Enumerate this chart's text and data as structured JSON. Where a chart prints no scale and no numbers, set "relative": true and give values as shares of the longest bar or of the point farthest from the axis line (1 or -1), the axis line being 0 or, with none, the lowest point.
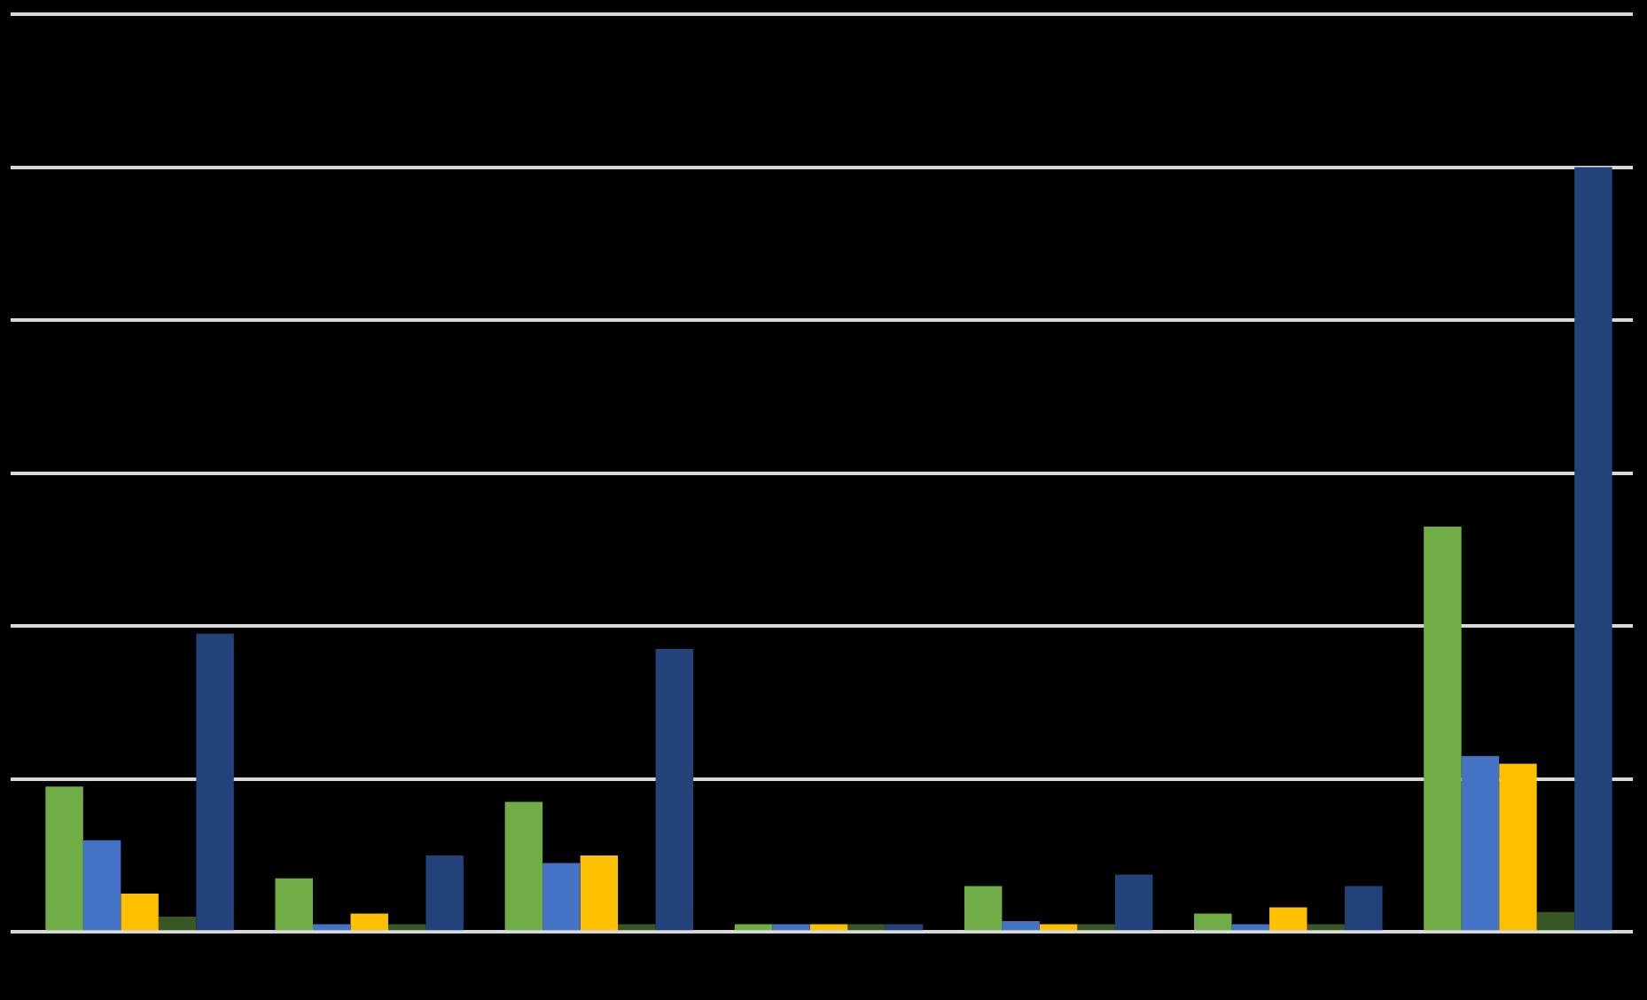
{
  "chart_data": {
    "type": "bar",
    "relative": true,
    "grid": "y",
    "categories": [
      null,
      null,
      null,
      null,
      null,
      null,
      null
    ],
    "series": [
      {
        "color": "#70ad47",
        "values": [
          0.19,
          0.07,
          0.17,
          0.01,
          0.06,
          0.024,
          0.53
        ]
      },
      {
        "color": "#4472c4",
        "values": [
          0.12,
          0.01,
          0.09,
          0.01,
          0.014,
          0.01,
          0.23
        ]
      },
      {
        "color": "#ffc000",
        "values": [
          0.05,
          0.024,
          0.1,
          0.01,
          0.01,
          0.032,
          0.22
        ]
      },
      {
        "color": "#385723",
        "values": [
          0.02,
          0.01,
          0.01,
          0.01,
          0.01,
          0.01,
          0.026
        ]
      },
      {
        "color": "#24427a",
        "values": [
          0.39,
          0.1,
          0.37,
          0.01,
          0.075,
          0.06,
          1
        ]
      }
    ]
  }
}
